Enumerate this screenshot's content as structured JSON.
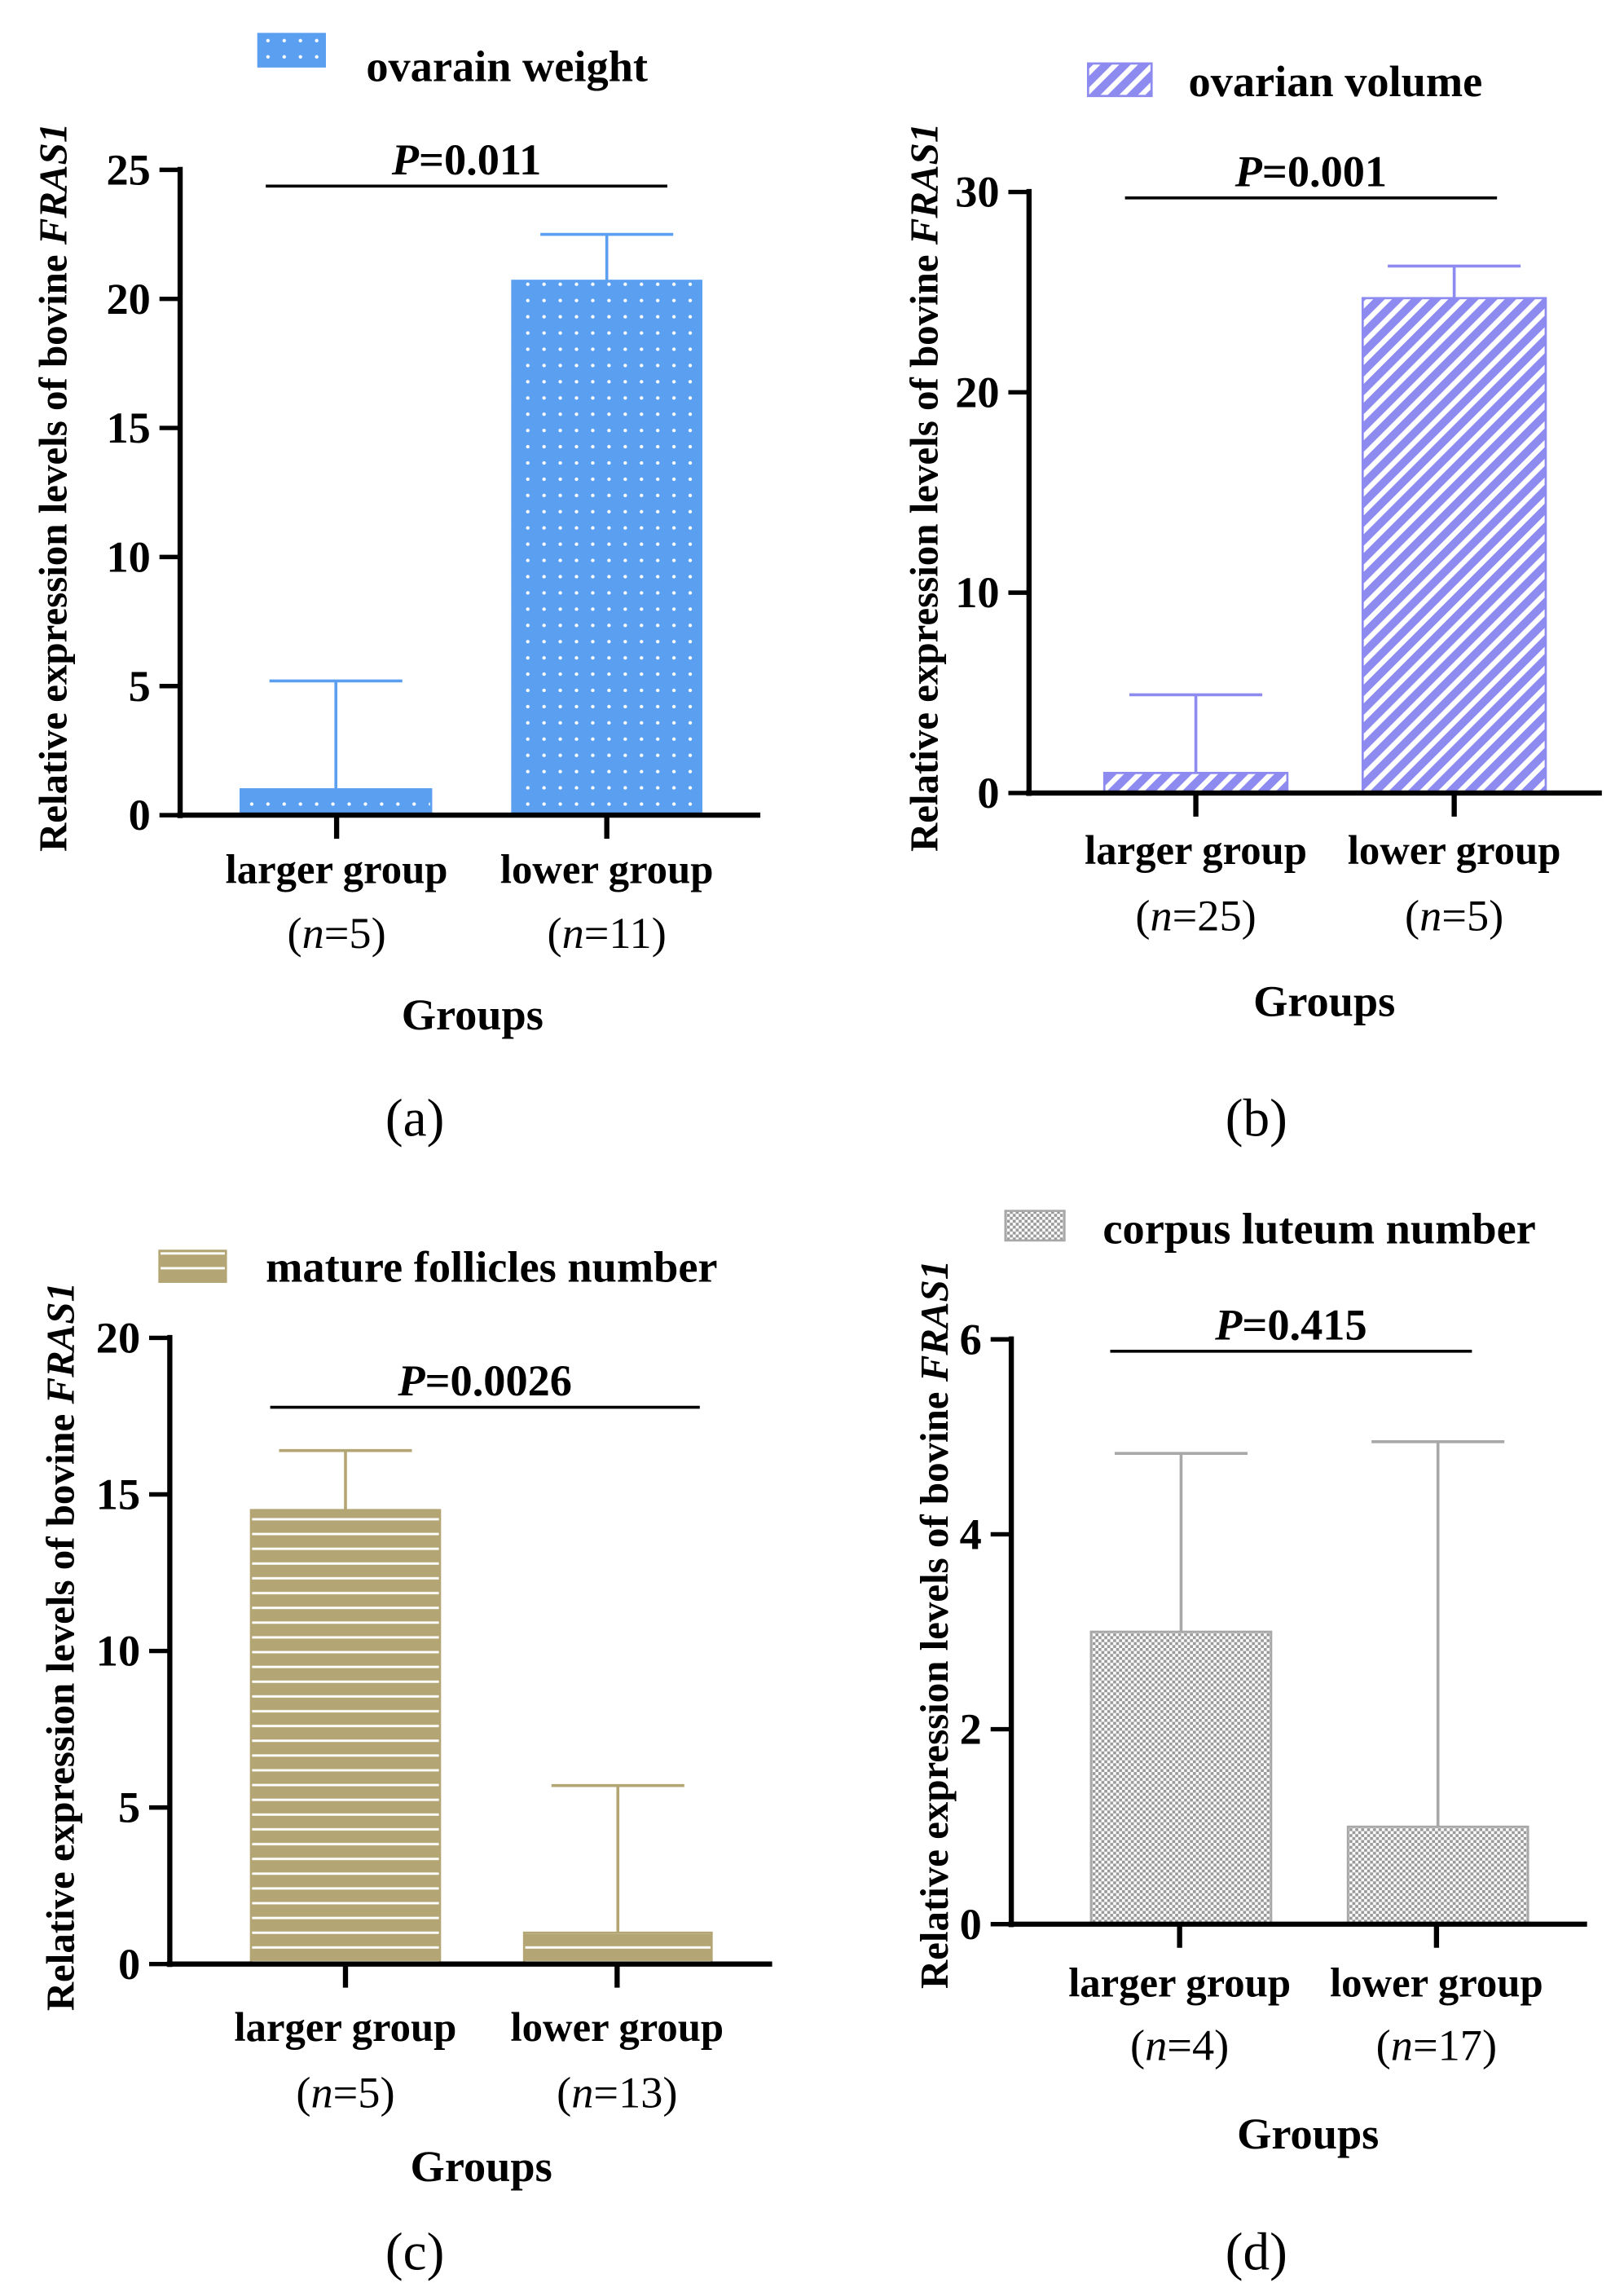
{
  "chart_data": [
    {
      "type": "bar",
      "panel_label": "(a)",
      "legend": "ovarain weight",
      "ylabel_prefix": "Relative expression levels of bovine ",
      "ylabel_gene": "FRAS1",
      "xlabel": "Groups",
      "ylim": [
        0,
        25
      ],
      "yticks": [
        0,
        5,
        10,
        15,
        20,
        25
      ],
      "categories": [
        "larger group",
        "lower group"
      ],
      "n_labels": [
        "5",
        "11"
      ],
      "values": [
        1.0,
        20.7
      ],
      "error_upper": [
        5.2,
        22.5
      ],
      "p_value": "=0.011",
      "p_symbol": "P",
      "color": "#5b9ff0",
      "pattern": "dots"
    },
    {
      "type": "bar",
      "panel_label": "(b)",
      "legend": "ovarian volume",
      "ylabel_prefix": "Relative expression levels of bovine ",
      "ylabel_gene": "FRAS1",
      "xlabel": "Groups",
      "ylim": [
        0,
        30
      ],
      "yticks": [
        0,
        10,
        20,
        30
      ],
      "categories": [
        "larger group",
        "lower group"
      ],
      "n_labels": [
        "25",
        "5"
      ],
      "values": [
        1.0,
        24.7
      ],
      "error_upper": [
        4.9,
        26.3
      ],
      "p_value": "=0.001",
      "p_symbol": "P",
      "color": "#8d8af0",
      "pattern": "diagonal"
    },
    {
      "type": "bar",
      "panel_label": "(c)",
      "legend": "mature follicles number",
      "ylabel_prefix": "Relative expression levels of bovine ",
      "ylabel_gene": "FRAS1",
      "xlabel": "Groups",
      "ylim": [
        0,
        20
      ],
      "yticks": [
        0,
        5,
        10,
        15,
        20
      ],
      "categories": [
        "larger group",
        "lower group"
      ],
      "n_labels": [
        "5",
        "13"
      ],
      "values": [
        14.5,
        1.0
      ],
      "error_upper": [
        16.4,
        5.7
      ],
      "p_value": "=0.0026",
      "p_symbol": "P",
      "color": "#b3a674",
      "pattern": "horizontal"
    },
    {
      "type": "bar",
      "panel_label": "(d)",
      "legend": "corpus luteum number",
      "ylabel_prefix": "Relative expression levels of bovine ",
      "ylabel_gene": "FRAS1",
      "xlabel": "Groups",
      "ylim": [
        0,
        6
      ],
      "yticks": [
        0,
        2,
        4,
        6
      ],
      "categories": [
        "larger group",
        "lower group"
      ],
      "n_labels": [
        "4",
        "17"
      ],
      "values": [
        3.0,
        1.0
      ],
      "error_upper": [
        4.83,
        4.95
      ],
      "p_value": "=0.415",
      "p_symbol": "P",
      "color": "#a8a8a8",
      "pattern": "checker"
    }
  ]
}
